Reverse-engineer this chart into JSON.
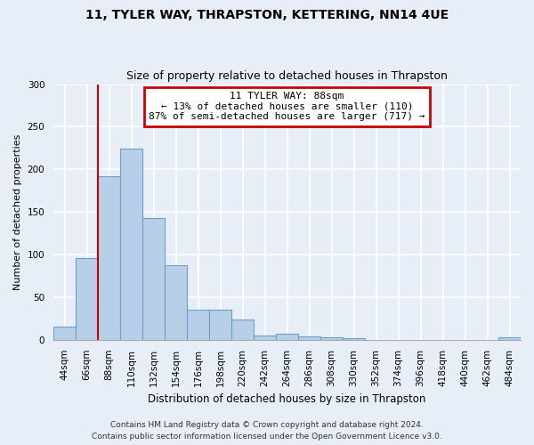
{
  "title1": "11, TYLER WAY, THRAPSTON, KETTERING, NN14 4UE",
  "title2": "Size of property relative to detached houses in Thrapston",
  "xlabel": "Distribution of detached houses by size in Thrapston",
  "ylabel": "Number of detached properties",
  "bar_labels": [
    "44sqm",
    "66sqm",
    "88sqm",
    "110sqm",
    "132sqm",
    "154sqm",
    "176sqm",
    "198sqm",
    "220sqm",
    "242sqm",
    "264sqm",
    "286sqm",
    "308sqm",
    "330sqm",
    "352sqm",
    "374sqm",
    "396sqm",
    "418sqm",
    "440sqm",
    "462sqm",
    "484sqm"
  ],
  "bar_values": [
    15,
    96,
    192,
    224,
    143,
    88,
    35,
    35,
    24,
    5,
    7,
    4,
    3,
    2,
    0,
    0,
    0,
    0,
    0,
    0,
    3
  ],
  "bar_color": "#b8cfe8",
  "bar_edge_color": "#6b9fcc",
  "annotation_text": "11 TYLER WAY: 88sqm\n← 13% of detached houses are smaller (110)\n87% of semi-detached houses are larger (717) →",
  "annotation_box_color": "#ffffff",
  "annotation_box_edge": "#cc0000",
  "vline_color": "#cc0000",
  "ylim": [
    0,
    300
  ],
  "yticks": [
    0,
    50,
    100,
    150,
    200,
    250,
    300
  ],
  "footer1": "Contains HM Land Registry data © Crown copyright and database right 2024.",
  "footer2": "Contains public sector information licensed under the Open Government Licence v3.0.",
  "bg_color": "#e8eef8",
  "plot_bg_color": "#e8eef8",
  "grid_color": "#ffffff",
  "title1_fontsize": 10,
  "title2_fontsize": 9,
  "ylabel_fontsize": 8,
  "xlabel_fontsize": 8.5,
  "tick_fontsize": 7.5,
  "footer_fontsize": 6.5
}
